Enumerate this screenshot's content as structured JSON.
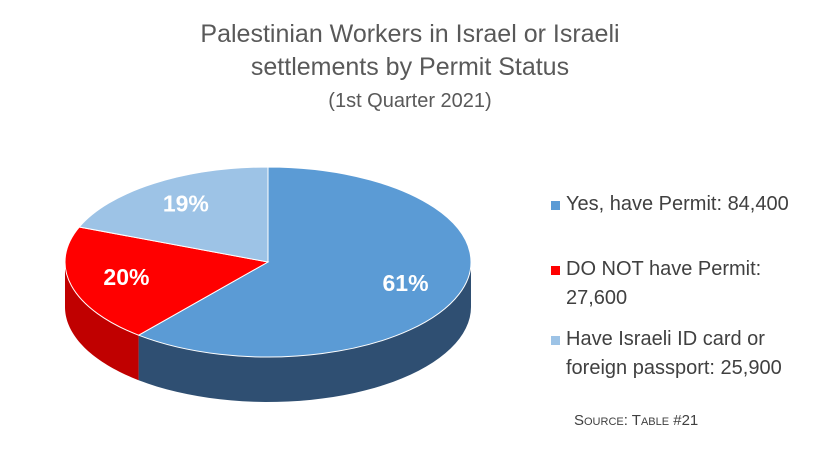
{
  "chart_data": {
    "type": "pie",
    "title": "Palestinian Workers in Israel or Israeli settlements by Permit Status",
    "subtitle": "(1st Quarter 2021)",
    "categories": [
      "Yes, have Permit: 84,400",
      "DO NOT have Permit: 27,600",
      "Have Israeli ID card or foreign passport: 25,900"
    ],
    "values": [
      61,
      20,
      19
    ],
    "value_labels": [
      "61%",
      "20%",
      "19%"
    ],
    "colors": [
      "#5b9bd5",
      "#ff0000",
      "#9dc3e6"
    ],
    "side_colors": [
      "#2f4f72",
      "#c00000",
      "#6f8fb0"
    ],
    "legend": "right",
    "source": "Source: Table #21"
  }
}
